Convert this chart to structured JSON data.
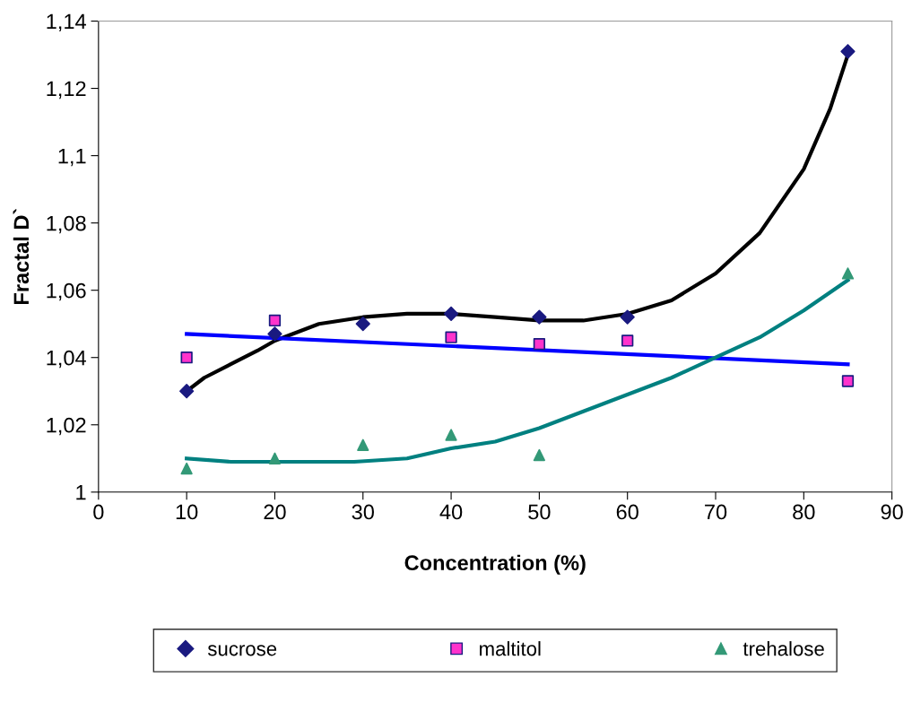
{
  "chart_data": {
    "type": "scatter",
    "xlabel": "Concentration (%)",
    "ylabel": "Fractal D`",
    "xlim": [
      0,
      90
    ],
    "xticks": [
      0,
      10,
      20,
      30,
      40,
      50,
      60,
      70,
      80,
      90
    ],
    "ylim": [
      1,
      1.14
    ],
    "yticks": [
      {
        "value": 1,
        "label": "1"
      },
      {
        "value": 1.02,
        "label": "1,02"
      },
      {
        "value": 1.04,
        "label": "1,04"
      },
      {
        "value": 1.06,
        "label": "1,06"
      },
      {
        "value": 1.08,
        "label": "1,08"
      },
      {
        "value": 1.1,
        "label": "1,1"
      },
      {
        "value": 1.12,
        "label": "1,12"
      },
      {
        "value": 1.14,
        "label": "1,14"
      }
    ],
    "grid": false,
    "legend": "bottom",
    "series": [
      {
        "name": "sucrose",
        "marker": "diamond",
        "color": "#1a1a80",
        "x": [
          10,
          20,
          30,
          40,
          50,
          60,
          85
        ],
        "values": [
          1.03,
          1.047,
          1.05,
          1.053,
          1.052,
          1.052,
          1.131
        ]
      },
      {
        "name": "maltitol",
        "marker": "square",
        "color": "#ff33cc",
        "x": [
          10,
          20,
          40,
          50,
          60,
          85
        ],
        "values": [
          1.04,
          1.051,
          1.046,
          1.044,
          1.045,
          1.033
        ]
      },
      {
        "name": "trehalose",
        "marker": "triangle",
        "color": "#339977",
        "x": [
          10,
          20,
          30,
          40,
          50,
          85
        ],
        "values": [
          1.007,
          1.01,
          1.014,
          1.017,
          1.011,
          1.065
        ]
      },
      {
        "type": "line",
        "marker": "none",
        "color": "#000000",
        "x": [
          10,
          12,
          15,
          18,
          20,
          25,
          30,
          35,
          40,
          45,
          50,
          55,
          60,
          65,
          70,
          75,
          80,
          83,
          85
        ],
        "values": [
          1.03,
          1.034,
          1.038,
          1.042,
          1.045,
          1.05,
          1.052,
          1.053,
          1.053,
          1.052,
          1.051,
          1.051,
          1.053,
          1.057,
          1.065,
          1.077,
          1.096,
          1.114,
          1.13
        ]
      },
      {
        "type": "line",
        "marker": "none",
        "color": "#0000ff",
        "x": [
          10,
          85
        ],
        "values": [
          1.047,
          1.038
        ]
      },
      {
        "type": "line",
        "marker": "none",
        "color": "#008080",
        "x": [
          10,
          15,
          20,
          29,
          35,
          40,
          45,
          50,
          55,
          60,
          65,
          70,
          75,
          80,
          85
        ],
        "values": [
          1.01,
          1.009,
          1.009,
          1.009,
          1.01,
          1.013,
          1.015,
          1.019,
          1.024,
          1.029,
          1.034,
          1.04,
          1.046,
          1.054,
          1.063
        ]
      }
    ]
  }
}
